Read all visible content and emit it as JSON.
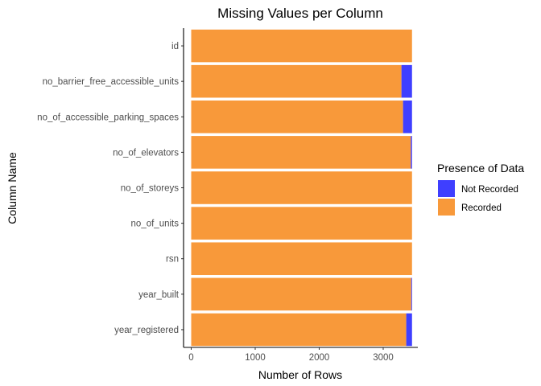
{
  "chart_data": {
    "type": "bar",
    "orientation": "horizontal",
    "stacked": true,
    "title": "Missing Values per Column",
    "xlabel": "Number of Rows",
    "ylabel": "Column Name",
    "xlim": [
      0,
      3450
    ],
    "xticks": [
      0,
      1000,
      2000,
      3000
    ],
    "grid": false,
    "legend_position": "right",
    "legend_title": "Presence of Data",
    "categories": [
      "id",
      "no_barrier_free_accessible_units",
      "no_of_accessible_parking_spaces",
      "no_of_elevators",
      "no_of_storeys",
      "no_of_units",
      "rsn",
      "year_built",
      "year_registered"
    ],
    "series": [
      {
        "name": "Recorded",
        "color": "#F8993A",
        "values": [
          3450,
          3285,
          3310,
          3432,
          3450,
          3450,
          3450,
          3438,
          3360
        ]
      },
      {
        "name": "Not Recorded",
        "color": "#3F3FFF",
        "values": [
          0,
          165,
          140,
          18,
          0,
          0,
          0,
          12,
          90
        ]
      }
    ],
    "legend_order": [
      "Not Recorded",
      "Recorded"
    ]
  }
}
